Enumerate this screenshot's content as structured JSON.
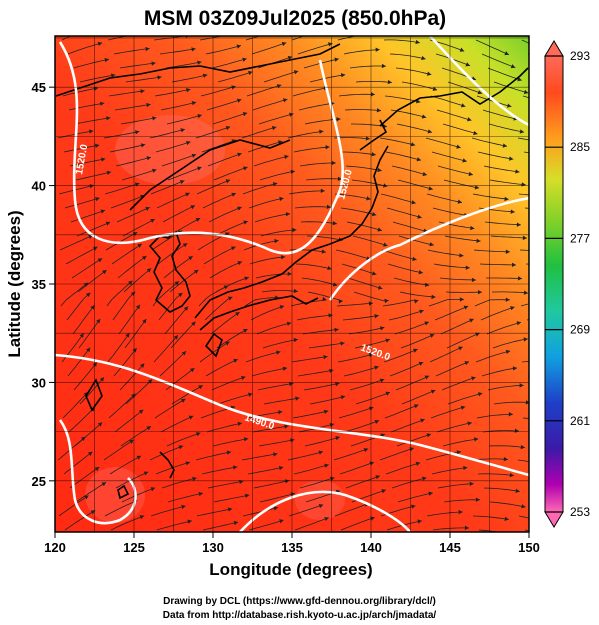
{
  "title": "MSM 03Z09Jul2025 (850.0hPa)",
  "map": {
    "xlabel": "Longitude (degrees)",
    "ylabel": "Latitude  (degrees)",
    "lon_range": [
      120,
      150
    ],
    "lat_range": [
      22.4,
      47.6
    ],
    "lon_ticks": [
      "120",
      "125",
      "130",
      "135",
      "140",
      "145",
      "150"
    ],
    "lat_ticks": [
      "25",
      "30",
      "35",
      "40",
      "45"
    ],
    "grid": true,
    "field": "temperature (K), shaded",
    "overlay": "wind streamlines and geopotential height contours"
  },
  "colorbar": {
    "ticks": [
      "293",
      "285",
      "277",
      "269",
      "261",
      "253"
    ],
    "range": [
      253,
      293
    ],
    "colors": [
      "#ff69b4",
      "#b000b0",
      "#3b1aa8",
      "#1e40c8",
      "#10a0e0",
      "#20c8a0",
      "#20c040",
      "#7ad02a",
      "#d6de28",
      "#ff9d1e",
      "#ff4a1e",
      "#ff6a5a"
    ]
  },
  "contours": [
    {
      "label": "1520.0"
    },
    {
      "label": "1520.0"
    },
    {
      "label": "1520.0"
    },
    {
      "label": "1490.0"
    }
  ],
  "credits": {
    "line1": "Drawing by DCL (https://www.gfd-dennou.org/library/dcl/)",
    "line2": "Data from http://database.rish.kyoto-u.ac.jp/arch/jmadata/"
  }
}
